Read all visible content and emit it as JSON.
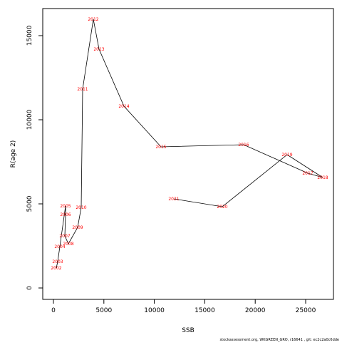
{
  "chart_data": {
    "type": "line",
    "xlabel": "SSB",
    "ylabel": "R(age 2)",
    "footer": "stockassessment.org, WKGREEN_GRO, r16641 , git: ec2c2a0c6dde",
    "labels": [
      "2002",
      "2003",
      "2004",
      "2005",
      "2006",
      "2007",
      "2008",
      "2009",
      "2010",
      "2011",
      "2012",
      "2013",
      "2014",
      "2015",
      "2016",
      "2017",
      "2018",
      "2019",
      "2020",
      "2021"
    ],
    "x": [
      282,
      424,
      636,
      1200,
      1200,
      1130,
      1483,
      2401,
      2754,
      2895,
      3955,
      4520,
      6992,
      10664,
      18856,
      25212,
      26695,
      23164,
      16737,
      11935
    ],
    "series": [
      {
        "color": "#000000",
        "label_color": "#ff0000",
        "values": [
          1186,
          1568,
          2458,
          4873,
          4364,
          3093,
          2627,
          3602,
          4788,
          11822,
          15975,
          14195,
          10805,
          8390,
          8517,
          6822,
          6568,
          7924,
          4831,
          5297
        ]
      }
    ],
    "xlim": [
      -1059,
      27754
    ],
    "ylim": [
      -678,
      16610
    ],
    "xticks": [
      0,
      5000,
      10000,
      15000,
      20000,
      25000
    ],
    "yticks": [
      0,
      5000,
      10000,
      15000
    ]
  }
}
